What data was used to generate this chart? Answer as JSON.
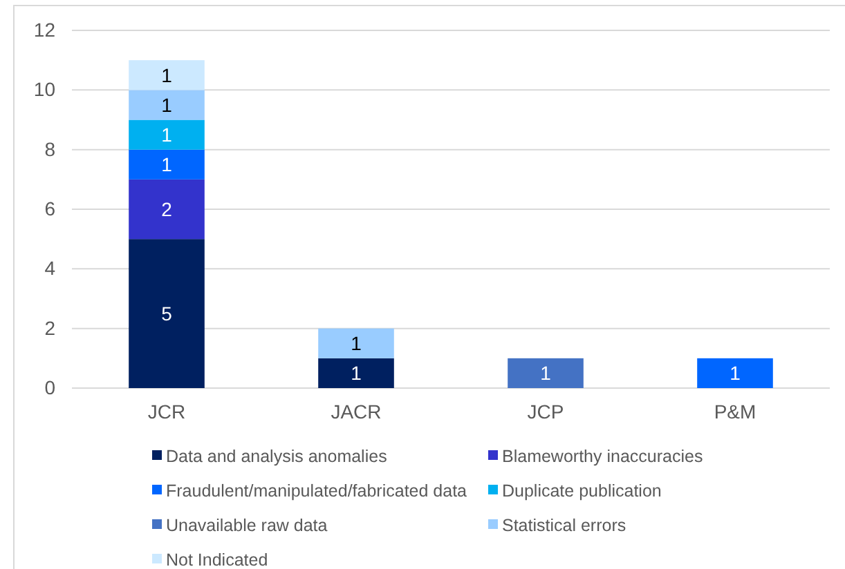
{
  "chart_data": {
    "type": "bar",
    "stacked": true,
    "categories": [
      "JCR",
      "JACR",
      "JCP",
      "P&M"
    ],
    "series": [
      {
        "name": "Data and analysis anomalies",
        "color": "#002060",
        "values": [
          5,
          1,
          null,
          null
        ]
      },
      {
        "name": "Blameworthy inaccuracies",
        "color": "#3333cc",
        "values": [
          2,
          null,
          null,
          null
        ]
      },
      {
        "name": "Fraudulent/manipulated/fabricated data",
        "color": "#0066ff",
        "values": [
          1,
          null,
          null,
          1
        ]
      },
      {
        "name": "Duplicate publication",
        "color": "#00b0f0",
        "values": [
          1,
          null,
          null,
          null
        ]
      },
      {
        "name": "Unavailable raw data",
        "color": "#4472c4",
        "values": [
          null,
          null,
          1,
          null
        ]
      },
      {
        "name": "Statistical errors",
        "color": "#99ccff",
        "values": [
          1,
          1,
          null,
          null
        ]
      },
      {
        "name": "Not Indicated",
        "color": "#cce9ff",
        "values": [
          1,
          null,
          null,
          null
        ]
      }
    ],
    "ylim": [
      0,
      12
    ],
    "yticks": [
      0,
      2,
      4,
      6,
      8,
      10,
      12
    ],
    "grid": "y",
    "legend": "bottom",
    "data_labels": true
  }
}
